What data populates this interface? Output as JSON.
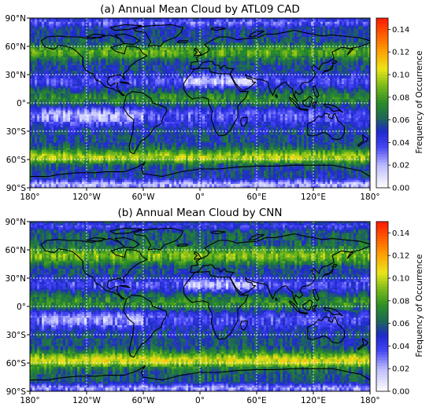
{
  "panels": [
    {
      "title": "(a) Annual Mean Cloud by ATL09 CAD",
      "colorbar": {
        "label": "Frequency of Occurrence",
        "ticks": [
          "0.00",
          "0.02",
          "0.04",
          "0.06",
          "0.08",
          "0.10",
          "0.12",
          "0.14"
        ],
        "range": [
          0.0,
          0.15
        ]
      },
      "xticks": [
        "180°",
        "120°W",
        "60°W",
        "0°",
        "60°E",
        "120°E",
        "180°"
      ],
      "yticks": [
        "90°N",
        "60°N",
        "30°N",
        "0°",
        "30°S",
        "60°S",
        "90°S"
      ]
    },
    {
      "title": "(b) Annual Mean Cloud by CNN",
      "colorbar": {
        "label": "Frequency of Occurrence",
        "ticks": [
          "0.00",
          "0.02",
          "0.04",
          "0.06",
          "0.08",
          "0.10",
          "0.12",
          "0.14"
        ],
        "range": [
          0.0,
          0.15
        ]
      },
      "xticks": [
        "180°",
        "120°W",
        "60°W",
        "0°",
        "60°E",
        "120°E",
        "180°"
      ],
      "yticks": [
        "90°N",
        "60°N",
        "30°N",
        "0°",
        "30°S",
        "60°S",
        "90°S"
      ]
    }
  ],
  "colors": {
    "colormap": [
      "#ffffff",
      "#6b6bff",
      "#1f2fd6",
      "#1d7a2a",
      "#4c9f1b",
      "#e9e31a",
      "#ff8a00",
      "#ff1a00"
    ],
    "coastline": "#000000",
    "gridline": "#ffffff"
  }
}
